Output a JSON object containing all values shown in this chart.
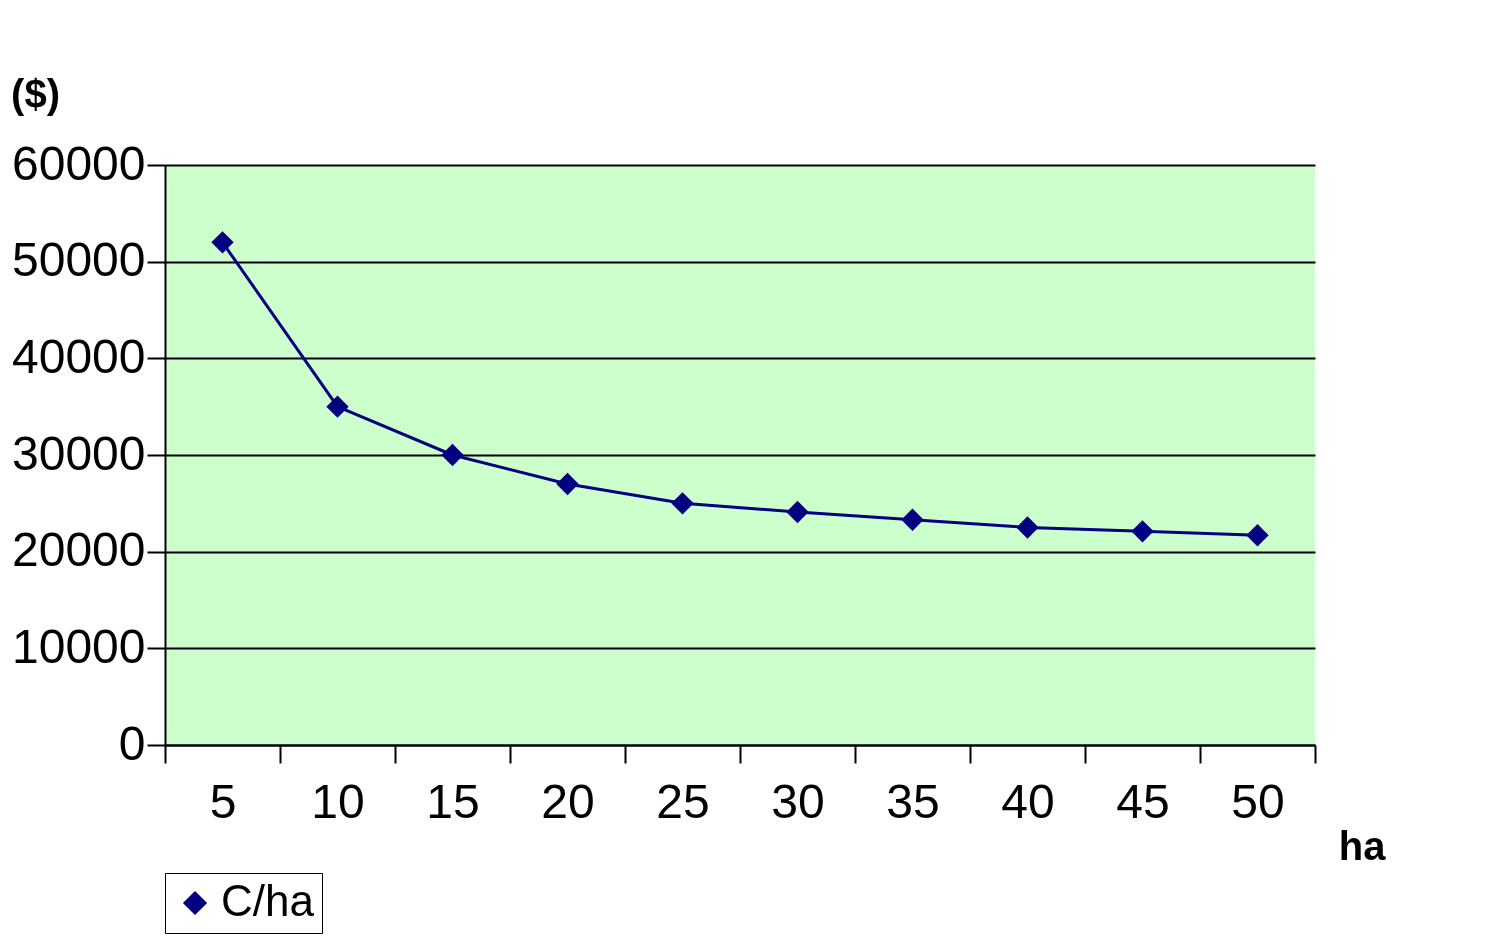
{
  "chart_data": {
    "type": "line",
    "xlabel": "ha",
    "ylabel": "($)",
    "categories": [
      "5",
      "10",
      "15",
      "20",
      "25",
      "30",
      "35",
      "40",
      "45",
      "50"
    ],
    "series": [
      {
        "name": "C/ha",
        "color": "#000080",
        "values": [
          52000,
          35000,
          30000,
          27000,
          25000,
          24100,
          23300,
          22500,
          22100,
          21700
        ]
      }
    ],
    "ylim": [
      0,
      60000
    ],
    "yticks": [
      0,
      10000,
      20000,
      30000,
      40000,
      50000,
      60000
    ],
    "grid": "y",
    "legend": "bottom",
    "marker": "diamond",
    "line_style": "solid"
  }
}
